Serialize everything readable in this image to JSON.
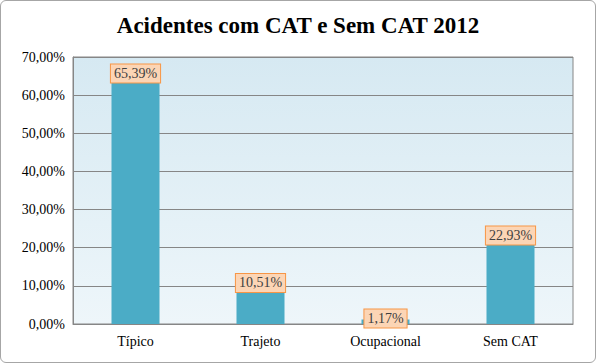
{
  "chart_data": {
    "type": "bar",
    "title": "Acidentes com CAT e Sem CAT 2012",
    "categories": [
      "Típico",
      "Trajeto",
      "Ocupacional",
      "Sem CAT"
    ],
    "values": [
      65.39,
      10.51,
      1.17,
      22.93
    ],
    "value_labels": [
      "65,39%",
      "10,51%",
      "1,17%",
      "22,93%"
    ],
    "color": "#4bacc6",
    "ylim": [
      0,
      70
    ],
    "yticks": [
      {
        "value": 0,
        "label": "0,00%"
      },
      {
        "value": 10,
        "label": "10,00%"
      },
      {
        "value": 20,
        "label": "20,00%"
      },
      {
        "value": 30,
        "label": "30,00%"
      },
      {
        "value": 40,
        "label": "40,00%"
      },
      {
        "value": 50,
        "label": "50,00%"
      },
      {
        "value": 60,
        "label": "60,00%"
      },
      {
        "value": 70,
        "label": "70,00%"
      }
    ],
    "grid": true,
    "data_labels": true
  }
}
